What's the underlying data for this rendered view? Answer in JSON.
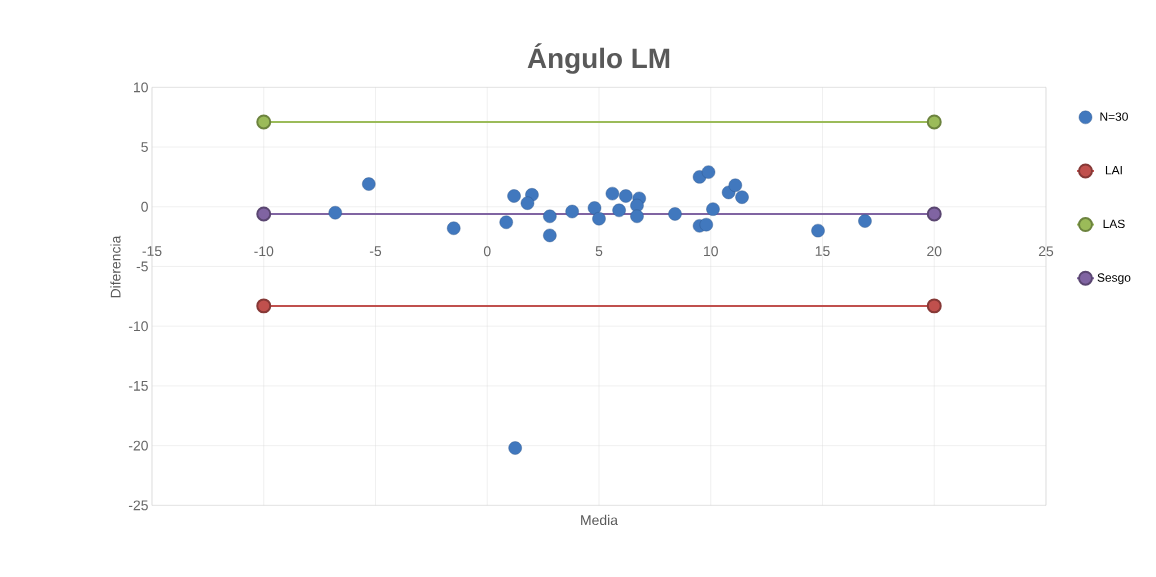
{
  "chart_data": {
    "type": "scatter",
    "title": "Ángulo LM",
    "xlabel": "Media",
    "ylabel": "Diferencia",
    "xlim": [
      -15,
      25
    ],
    "ylim": [
      -25,
      10
    ],
    "xticks": [
      -15,
      -10,
      -5,
      0,
      5,
      10,
      15,
      20,
      25
    ],
    "yticks": [
      -25,
      -20,
      -15,
      -10,
      -5,
      0,
      5,
      10
    ],
    "grid": true,
    "legend": "right",
    "marker": "circle",
    "series": [
      {
        "name": "N=30",
        "color": "#4178be",
        "x": [
          -6.8,
          -5.3,
          -1.5,
          0.85,
          1.2,
          2.0,
          1.8,
          2.8,
          2.8,
          3.8,
          4.8,
          5.0,
          5.6,
          5.9,
          6.8,
          6.7,
          6.7,
          6.2,
          8.4,
          9.5,
          9.9,
          9.5,
          9.8,
          10.1,
          10.8,
          11.1,
          11.4,
          14.8,
          16.9,
          1.25
        ],
        "values": [
          -0.5,
          1.9,
          -1.8,
          -1.3,
          0.9,
          1.0,
          0.3,
          -0.8,
          -2.4,
          -0.4,
          -0.1,
          -1.0,
          1.1,
          -0.3,
          0.7,
          0.1,
          -0.8,
          0.9,
          -0.6,
          2.5,
          2.9,
          -1.6,
          -1.5,
          -0.2,
          1.2,
          1.8,
          0.8,
          -2.0,
          -1.2,
          -20.2
        ]
      },
      {
        "name": "LAI",
        "type": "line",
        "color": "#c0504d",
        "x": [
          -10,
          20
        ],
        "values": [
          -8.3,
          -8.3
        ]
      },
      {
        "name": "LAS",
        "type": "line",
        "color": "#9bbb59",
        "x": [
          -10,
          20
        ],
        "values": [
          7.1,
          7.1
        ]
      },
      {
        "name": "Sesgo",
        "type": "line",
        "color": "#8064a2",
        "x": [
          -10,
          20
        ],
        "values": [
          -0.6,
          -0.6
        ]
      }
    ]
  }
}
